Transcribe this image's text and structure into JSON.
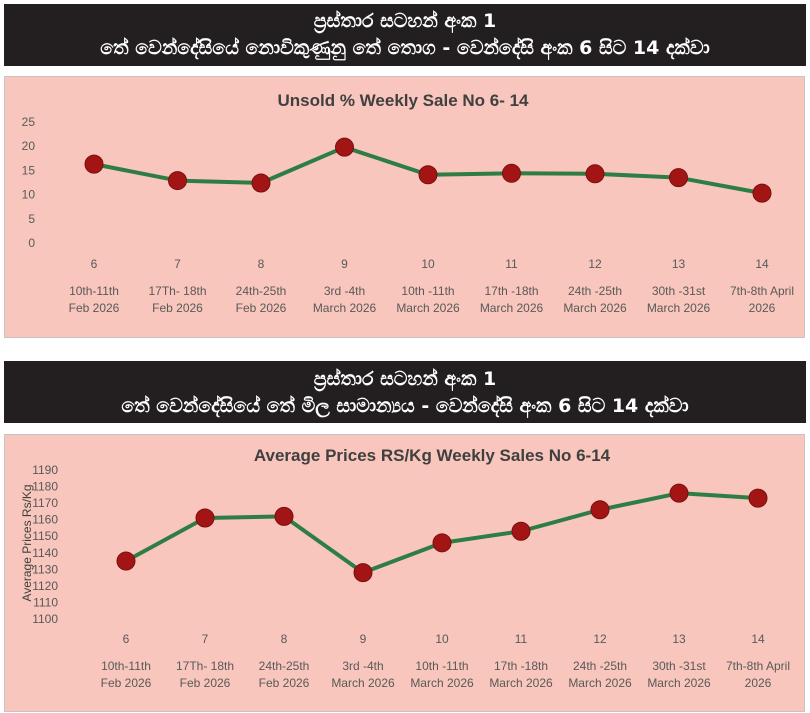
{
  "banner1": {
    "line1": "ප්‍රස්තාර සටහන් අංක 1",
    "line2": "තේ වෙන්දේසියේ නොවිකුණුනු තේ තොග - වෙන්දේසි අංක 6 සිට 14 දක්වා"
  },
  "banner2": {
    "line1": "ප්‍රස්තාර සටහන් අංක 1",
    "line2": "තේ වෙන්දේසියේ තේ මිල සාමාන්‍යය - වෙන්දේසි අංක 6 සිට 14 දක්වා"
  },
  "colors": {
    "line": "#2e7d45",
    "marker": "#a31515",
    "panel": "#f8c6bc",
    "banner": "#231f20"
  },
  "chart_data": [
    {
      "type": "line",
      "title": "Unsold %  Weekly Sale No 6- 14",
      "xlabel": "",
      "ylabel": "",
      "ylim": [
        0,
        25
      ],
      "yticks": [
        0,
        5,
        10,
        15,
        20,
        25
      ],
      "categories": [
        "6",
        "7",
        "8",
        "9",
        "10",
        "11",
        "12",
        "13",
        "14"
      ],
      "date_line1": [
        "10th-11th",
        "17Th- 18th",
        "24th-25th",
        "3rd -4th",
        "10th -11th",
        "17th -18th",
        "24th -25th",
        "30th -31st",
        "7th-8th April"
      ],
      "date_line2": [
        "Feb 2026",
        "Feb 2026",
        "Feb 2026",
        "March 2026",
        "March 2026",
        "March 2026",
        "March 2026",
        "March 2026",
        "2026"
      ],
      "series": [
        {
          "name": "Unsold %",
          "values": [
            16.3,
            12.9,
            12.4,
            19.8,
            14.1,
            14.4,
            14.3,
            13.5,
            10.3
          ]
        }
      ],
      "grid": false
    },
    {
      "type": "line",
      "title": "Average Prices RS/Kg Weekly Sales No 6-14",
      "xlabel": "",
      "ylabel": "Average Prices Rs/Kg",
      "ylim": [
        1100,
        1190
      ],
      "yticks": [
        1100,
        1110,
        1120,
        1130,
        1140,
        1150,
        1160,
        1170,
        1180,
        1190
      ],
      "categories": [
        "6",
        "7",
        "8",
        "9",
        "10",
        "11",
        "12",
        "13",
        "14"
      ],
      "date_line1": [
        "10th-11th",
        "17Th- 18th",
        "24th-25th",
        "3rd -4th",
        "10th -11th",
        "17th -18th",
        "24th -25th",
        "30th -31st",
        "7th-8th April"
      ],
      "date_line2": [
        "Feb 2026",
        "Feb 2026",
        "Feb 2026",
        "March 2026",
        "March 2026",
        "March 2026",
        "March 2026",
        "March 2026",
        "2026"
      ],
      "series": [
        {
          "name": "Average Price",
          "values": [
            1135,
            1161,
            1162,
            1128,
            1146,
            1153,
            1166,
            1176,
            1173
          ]
        }
      ],
      "grid": false
    }
  ]
}
